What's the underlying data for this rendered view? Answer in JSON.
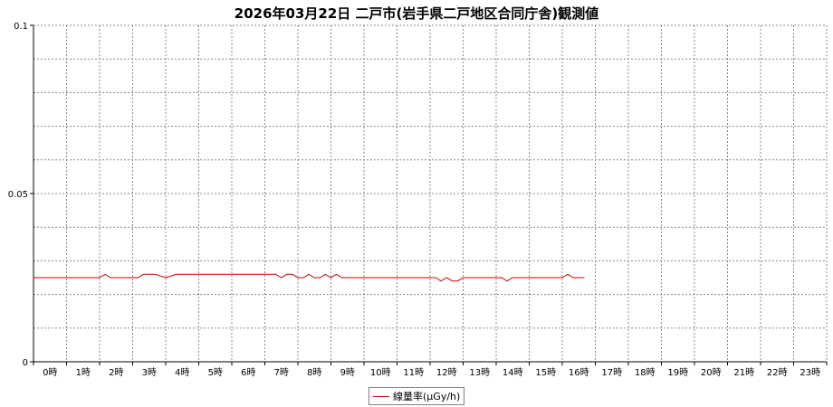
{
  "chart_data": {
    "type": "line",
    "title": "2026年03月22日 二戸市(岩手県二戸地区合同庁舎)観測値",
    "xlabel": "",
    "ylabel": "",
    "ylim": [
      0,
      0.1
    ],
    "y_ticks": [
      "0",
      "0.05",
      "0.1"
    ],
    "x_ticks": [
      "0時",
      "1時",
      "2時",
      "3時",
      "4時",
      "5時",
      "6時",
      "7時",
      "8時",
      "9時",
      "10時",
      "11時",
      "12時",
      "13時",
      "14時",
      "15時",
      "16時",
      "17時",
      "18時",
      "19時",
      "20時",
      "21時",
      "22時",
      "23時"
    ],
    "grid": true,
    "legend_position": "bottom-center",
    "series": [
      {
        "name": "線量率(μGy/h)",
        "color": "#cc0000",
        "x": [
          0,
          0.33,
          0.67,
          1,
          1.33,
          1.67,
          2,
          2.17,
          2.33,
          2.67,
          3,
          3.17,
          3.33,
          3.5,
          3.67,
          4,
          4.33,
          4.67,
          5,
          5.33,
          5.67,
          6,
          6.33,
          6.67,
          7,
          7.17,
          7.33,
          7.5,
          7.67,
          7.83,
          8,
          8.17,
          8.33,
          8.5,
          8.67,
          8.83,
          9,
          9.17,
          9.33,
          9.5,
          9.67,
          10,
          10.33,
          10.67,
          11,
          11.33,
          11.67,
          12,
          12.17,
          12.33,
          12.5,
          12.67,
          12.83,
          13,
          13.33,
          13.67,
          14,
          14.17,
          14.33,
          14.5,
          14.67,
          15,
          15.33,
          15.67,
          16,
          16.17,
          16.33,
          16.5,
          16.67
        ],
        "values": [
          0.025,
          0.025,
          0.025,
          0.025,
          0.025,
          0.025,
          0.025,
          0.026,
          0.025,
          0.025,
          0.025,
          0.025,
          0.026,
          0.026,
          0.026,
          0.025,
          0.026,
          0.026,
          0.026,
          0.026,
          0.026,
          0.026,
          0.026,
          0.026,
          0.026,
          0.026,
          0.026,
          0.025,
          0.026,
          0.026,
          0.025,
          0.025,
          0.026,
          0.025,
          0.025,
          0.026,
          0.025,
          0.026,
          0.025,
          0.025,
          0.025,
          0.025,
          0.025,
          0.025,
          0.025,
          0.025,
          0.025,
          0.025,
          0.025,
          0.024,
          0.025,
          0.024,
          0.024,
          0.025,
          0.025,
          0.025,
          0.025,
          0.025,
          0.024,
          0.025,
          0.025,
          0.025,
          0.025,
          0.025,
          0.025,
          0.026,
          0.025,
          0.025,
          0.025
        ]
      }
    ]
  }
}
